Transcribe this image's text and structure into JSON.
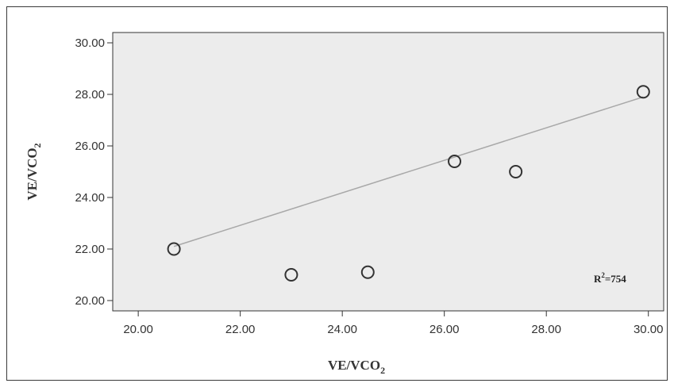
{
  "chart_data": {
    "type": "scatter",
    "title": "",
    "xlabel": "VE/VCO",
    "xlabel_sub": "2",
    "ylabel": "VE/VCO",
    "ylabel_sub": "2",
    "xlim": [
      19.5,
      30.3
    ],
    "ylim": [
      19.6,
      30.4
    ],
    "xticks": [
      "20.00",
      "22.00",
      "24.00",
      "26.00",
      "28.00",
      "30.00"
    ],
    "yticks": [
      "20.00",
      "22.00",
      "24.00",
      "26.00",
      "28.00",
      "30.00"
    ],
    "points": [
      {
        "x": 20.7,
        "y": 22.0
      },
      {
        "x": 23.0,
        "y": 21.0
      },
      {
        "x": 24.5,
        "y": 21.1
      },
      {
        "x": 26.2,
        "y": 25.4
      },
      {
        "x": 27.4,
        "y": 25.0
      },
      {
        "x": 29.9,
        "y": 28.1
      }
    ],
    "fit_line": {
      "x1": 20.7,
      "y1": 22.1,
      "x2": 29.9,
      "y2": 27.9
    },
    "r2_label": "R",
    "r2_sup": "2",
    "r2_value": "=754",
    "grid": false,
    "colors": {
      "plot_bg": "#ececec",
      "marker": "#333333",
      "fit_line": "#a8a8a8"
    }
  }
}
